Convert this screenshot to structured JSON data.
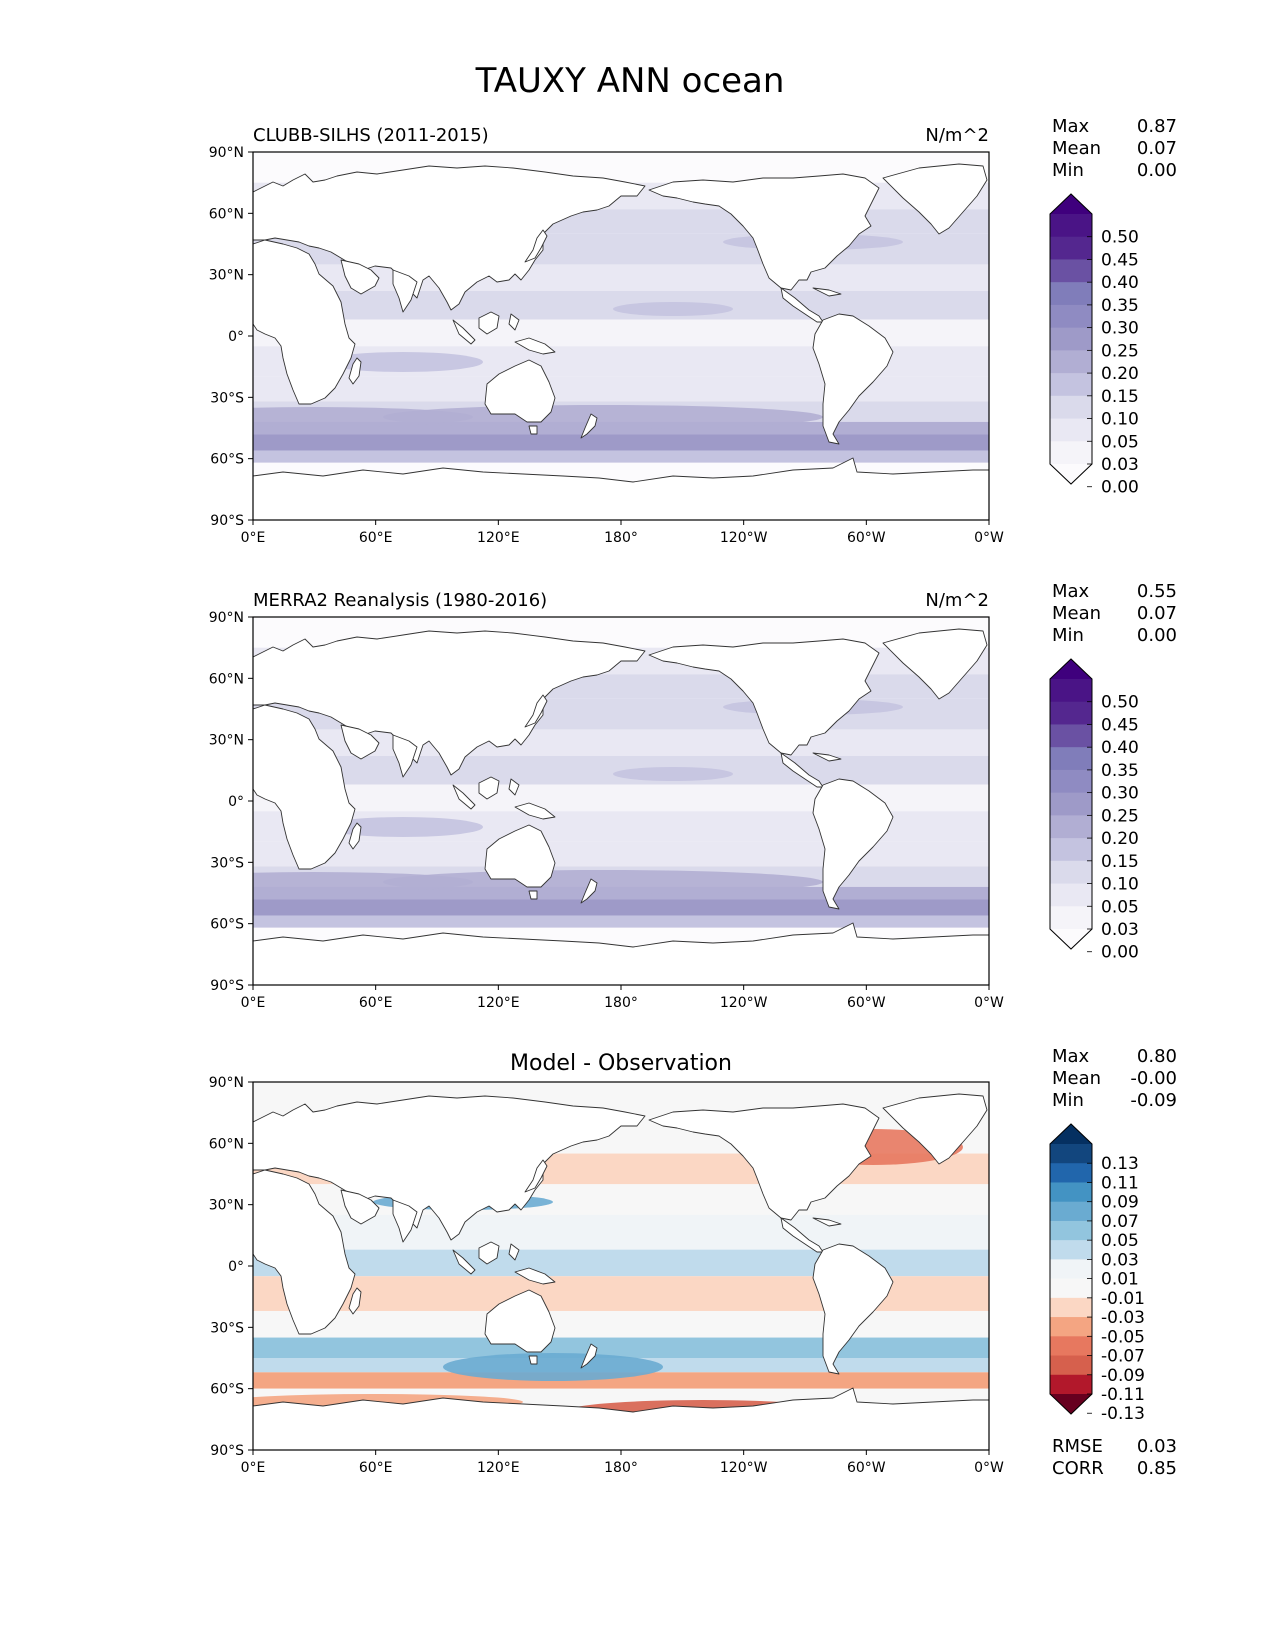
{
  "figure_title": "TAUXY ANN ocean",
  "colors": {
    "land": "#ffffff",
    "coast": "#333333",
    "diff_zero": "#f5f5f5"
  },
  "axes": {
    "x_ticks": [
      "0°E",
      "60°E",
      "120°E",
      "180°",
      "120°W",
      "60°W",
      "0°W"
    ],
    "y_ticks": [
      "90°N",
      "60°N",
      "30°N",
      "0°",
      "30°S",
      "60°S",
      "90°S"
    ]
  },
  "panels": [
    {
      "id": "model",
      "left_title": "CLUBB-SILHS (2011-2015)",
      "center_title": "",
      "right_title": "N/m^2",
      "stats": [
        {
          "label": "Max",
          "value": "0.87"
        },
        {
          "label": "Mean",
          "value": "0.07"
        },
        {
          "label": "Min",
          "value": "0.00"
        }
      ],
      "colorbar": {
        "levels": [
          "0.50",
          "0.45",
          "0.40",
          "0.35",
          "0.30",
          "0.25",
          "0.20",
          "0.15",
          "0.10",
          "0.05",
          "0.03",
          "0.00"
        ],
        "colors": [
          "#3f007d",
          "#4a1486",
          "#54278f",
          "#6a51a3",
          "#807dba",
          "#8f8bc2",
          "#9e9ac8",
          "#b1aed3",
          "#c4c3e0",
          "#dadaeb",
          "#e9e8f3",
          "#f5f4f9",
          "#fcfbfd"
        ]
      },
      "extra_stats": []
    },
    {
      "id": "obs",
      "left_title": "MERRA2 Reanalysis (1980-2016)",
      "center_title": "",
      "right_title": "N/m^2",
      "stats": [
        {
          "label": "Max",
          "value": "0.55"
        },
        {
          "label": "Mean",
          "value": "0.07"
        },
        {
          "label": "Min",
          "value": "0.00"
        }
      ],
      "colorbar": {
        "levels": [
          "0.50",
          "0.45",
          "0.40",
          "0.35",
          "0.30",
          "0.25",
          "0.20",
          "0.15",
          "0.10",
          "0.05",
          "0.03",
          "0.00"
        ],
        "colors": [
          "#3f007d",
          "#4a1486",
          "#54278f",
          "#6a51a3",
          "#807dba",
          "#8f8bc2",
          "#9e9ac8",
          "#b1aed3",
          "#c4c3e0",
          "#dadaeb",
          "#e9e8f3",
          "#f5f4f9",
          "#fcfbfd"
        ]
      },
      "extra_stats": []
    },
    {
      "id": "diff",
      "left_title": "",
      "center_title": "Model - Observation",
      "right_title": "",
      "stats": [
        {
          "label": "Max",
          "value": "0.80"
        },
        {
          "label": "Mean",
          "value": "-0.00"
        },
        {
          "label": "Min",
          "value": "-0.09"
        }
      ],
      "colorbar": {
        "levels": [
          "0.13",
          "0.11",
          "0.09",
          "0.07",
          "0.05",
          "0.03",
          "0.01",
          "-0.01",
          "-0.03",
          "-0.05",
          "-0.07",
          "-0.09",
          "-0.11",
          "-0.13"
        ],
        "colors": [
          "#053061",
          "#12467e",
          "#2166ac",
          "#4393c3",
          "#6aabd1",
          "#92c5de",
          "#c0dbec",
          "#f0f4f7",
          "#f7f7f7",
          "#fbd7c4",
          "#f4a582",
          "#e7785f",
          "#d6604d",
          "#b2182b",
          "#67001f"
        ]
      },
      "extra_stats": [
        {
          "label": "RMSE",
          "value": "0.03"
        },
        {
          "label": "CORR",
          "value": "0.85"
        }
      ]
    }
  ]
}
